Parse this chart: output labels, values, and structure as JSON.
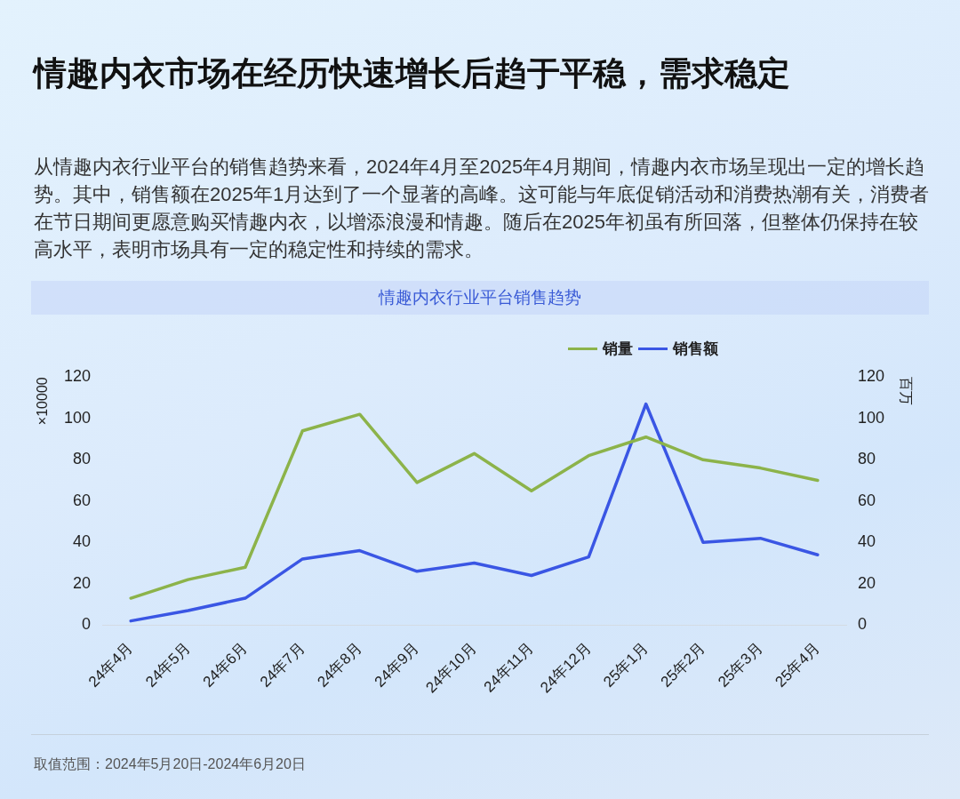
{
  "chart_data": {
    "type": "line",
    "title": "情趣内衣市场在经历快速增长后趋于平稳，需求稳定",
    "subtitle": "情趣内衣行业平台销售趋势",
    "annotations": [
      "从情趣内衣行业平台的销售趋势来看，2024年4月至2025年4月期间，情趣内衣市场呈现出一定的增长趋势。其中，销售额在2025年1月达到了一个显著的高峰。这可能与年底促销活动和消费热潮有关，消费者在节日期间更愿意购买情趣内衣，以增添浪漫和情趣。随后在2025年初虽有所回落，但整体仍保持在较高水平，表明市场具有一定的稳定性和持续的需求。",
      "取值范围：2024年5月20日-2024年6月20日"
    ],
    "categories": [
      "24年4月",
      "24年5月",
      "24年6月",
      "24年7月",
      "24年8月",
      "24年9月",
      "24年10月",
      "24年11月",
      "24年12月",
      "25年1月",
      "25年2月",
      "25年3月",
      "25年4月"
    ],
    "series": [
      {
        "name": "销量",
        "color": "#8cb34a",
        "values": [
          13,
          22,
          28,
          94,
          102,
          69,
          83,
          65,
          82,
          91,
          80,
          76,
          70
        ]
      },
      {
        "name": "销售额",
        "color": "#3a56e4",
        "axis": "y2",
        "values": [
          2,
          7,
          13,
          32,
          36,
          26,
          30,
          24,
          33,
          107,
          40,
          42,
          34
        ]
      }
    ],
    "ylabel": "×10000",
    "y2label": "百万",
    "ylim": [
      0,
      120
    ],
    "yticks": [
      0,
      20,
      40,
      60,
      80,
      100,
      120
    ],
    "y2lim": [
      0,
      120
    ],
    "y2ticks": [
      0,
      20,
      40,
      60,
      80,
      100,
      120
    ],
    "legend": "top right",
    "grid": false,
    "marker": "none"
  }
}
